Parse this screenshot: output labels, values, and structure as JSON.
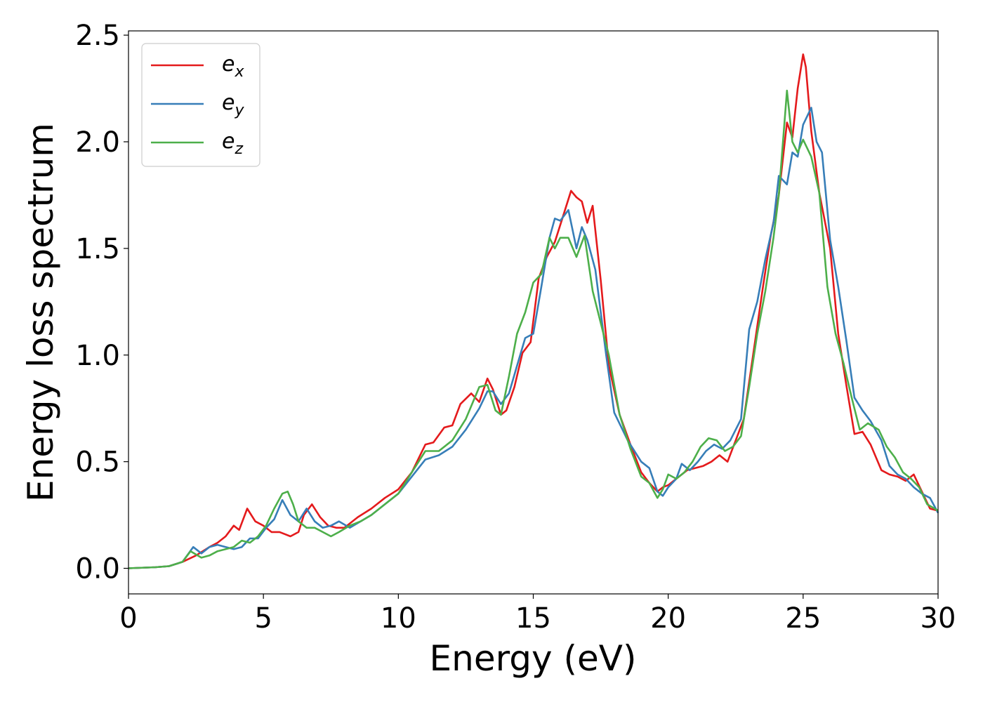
{
  "chart_data": {
    "type": "line",
    "xlabel": "Energy (eV)",
    "ylabel": "Energy loss spectrum",
    "xlim": [
      0,
      30
    ],
    "ylim": [
      -0.12,
      2.52
    ],
    "xticks": [
      0,
      5,
      10,
      15,
      20,
      25,
      30
    ],
    "yticks": [
      "0.0",
      "0.5",
      "1.0",
      "1.5",
      "2.0",
      "2.5"
    ],
    "grid": false,
    "legend_position": "top-left",
    "series": [
      {
        "name": "e",
        "subscript": "x",
        "color": "#e41a1c",
        "x": [
          0,
          1,
          1.5,
          2,
          2.5,
          3,
          3.3,
          3.6,
          3.9,
          4.1,
          4.4,
          4.7,
          5,
          5.3,
          5.6,
          6,
          6.3,
          6.5,
          6.8,
          7.1,
          7.4,
          7.7,
          8,
          8.5,
          9,
          9.5,
          10,
          10.5,
          11,
          11.3,
          11.7,
          12,
          12.3,
          12.7,
          13,
          13.3,
          13.5,
          13.8,
          14,
          14.3,
          14.6,
          14.9,
          15.2,
          15.5,
          15.8,
          16.1,
          16.4,
          16.6,
          16.8,
          17,
          17.2,
          17.5,
          17.8,
          18.2,
          18.6,
          19,
          19.3,
          19.6,
          19.8,
          20,
          20.3,
          20.7,
          21,
          21.3,
          21.6,
          21.9,
          22.2,
          22.5,
          22.8,
          23.1,
          23.5,
          23.8,
          24.1,
          24.4,
          24.6,
          24.8,
          25,
          25.1,
          25.3,
          25.6,
          26,
          26.3,
          26.6,
          26.9,
          27.2,
          27.5,
          27.9,
          28.2,
          28.5,
          28.8,
          29.1,
          29.4,
          29.7,
          30
        ],
        "y": [
          0,
          0.005,
          0.01,
          0.03,
          0.06,
          0.1,
          0.12,
          0.15,
          0.2,
          0.18,
          0.28,
          0.22,
          0.2,
          0.17,
          0.17,
          0.15,
          0.17,
          0.25,
          0.3,
          0.24,
          0.2,
          0.19,
          0.19,
          0.24,
          0.28,
          0.33,
          0.37,
          0.45,
          0.58,
          0.59,
          0.66,
          0.67,
          0.77,
          0.82,
          0.78,
          0.89,
          0.84,
          0.72,
          0.74,
          0.85,
          1.01,
          1.06,
          1.36,
          1.46,
          1.53,
          1.65,
          1.77,
          1.74,
          1.72,
          1.62,
          1.7,
          1.35,
          0.95,
          0.72,
          0.58,
          0.45,
          0.4,
          0.36,
          0.38,
          0.39,
          0.42,
          0.46,
          0.47,
          0.48,
          0.5,
          0.53,
          0.5,
          0.6,
          0.7,
          0.96,
          1.31,
          1.56,
          1.75,
          2.09,
          2.02,
          2.25,
          2.41,
          2.35,
          2.05,
          1.76,
          1.5,
          1.1,
          0.86,
          0.63,
          0.64,
          0.58,
          0.46,
          0.44,
          0.43,
          0.41,
          0.44,
          0.36,
          0.28,
          0.27
        ]
      },
      {
        "name": "e",
        "subscript": "y",
        "color": "#377eb8",
        "x": [
          0,
          1,
          1.5,
          2,
          2.4,
          2.7,
          3,
          3.3,
          3.6,
          3.9,
          4.2,
          4.5,
          4.8,
          5.1,
          5.4,
          5.7,
          6,
          6.3,
          6.6,
          6.9,
          7.2,
          7.5,
          7.8,
          8.2,
          8.6,
          9,
          9.5,
          10,
          10.5,
          11,
          11.5,
          12,
          12.5,
          13,
          13.3,
          13.5,
          13.8,
          14.1,
          14.4,
          14.7,
          15,
          15.3,
          15.6,
          15.8,
          16,
          16.3,
          16.6,
          16.8,
          17,
          17.3,
          17.7,
          18,
          18.5,
          19,
          19.3,
          19.6,
          19.8,
          20,
          20.3,
          20.5,
          20.8,
          21.1,
          21.4,
          21.7,
          22,
          22.3,
          22.7,
          23,
          23.3,
          23.6,
          23.9,
          24.1,
          24.4,
          24.6,
          24.8,
          25,
          25.3,
          25.5,
          25.7,
          26,
          26.3,
          26.6,
          26.9,
          27.2,
          27.5,
          27.9,
          28.2,
          28.5,
          28.8,
          29.1,
          29.4,
          29.7,
          30
        ],
        "y": [
          0,
          0.005,
          0.01,
          0.03,
          0.1,
          0.07,
          0.1,
          0.11,
          0.1,
          0.09,
          0.1,
          0.14,
          0.14,
          0.19,
          0.23,
          0.32,
          0.25,
          0.22,
          0.28,
          0.22,
          0.19,
          0.2,
          0.22,
          0.19,
          0.22,
          0.25,
          0.3,
          0.35,
          0.43,
          0.51,
          0.53,
          0.57,
          0.65,
          0.75,
          0.83,
          0.83,
          0.77,
          0.82,
          0.95,
          1.08,
          1.1,
          1.32,
          1.55,
          1.64,
          1.63,
          1.68,
          1.5,
          1.6,
          1.54,
          1.4,
          1.0,
          0.73,
          0.6,
          0.5,
          0.47,
          0.36,
          0.34,
          0.38,
          0.42,
          0.49,
          0.46,
          0.5,
          0.55,
          0.58,
          0.56,
          0.6,
          0.7,
          1.12,
          1.25,
          1.45,
          1.62,
          1.84,
          1.8,
          1.95,
          1.93,
          2.08,
          2.16,
          2.0,
          1.95,
          1.54,
          1.32,
          1.07,
          0.8,
          0.74,
          0.69,
          0.6,
          0.48,
          0.44,
          0.42,
          0.38,
          0.35,
          0.33,
          0.26
        ]
      },
      {
        "name": "e",
        "subscript": "z",
        "color": "#4daf4a",
        "x": [
          0,
          1,
          1.5,
          2,
          2.3,
          2.7,
          3,
          3.3,
          3.6,
          3.9,
          4.2,
          4.5,
          4.8,
          5.1,
          5.4,
          5.7,
          5.9,
          6.1,
          6.3,
          6.6,
          6.9,
          7.2,
          7.5,
          7.8,
          8.2,
          8.6,
          9,
          9.5,
          10,
          10.5,
          11,
          11.5,
          12,
          12.5,
          13,
          13.3,
          13.6,
          13.8,
          14.1,
          14.4,
          14.7,
          15,
          15.3,
          15.6,
          15.8,
          16,
          16.3,
          16.6,
          16.9,
          17.2,
          17.5,
          17.8,
          18.2,
          18.6,
          19,
          19.3,
          19.6,
          19.8,
          20,
          20.3,
          20.6,
          20.9,
          21.2,
          21.5,
          21.8,
          22.1,
          22.4,
          22.7,
          23,
          23.3,
          23.6,
          23.9,
          24.1,
          24.4,
          24.6,
          24.8,
          25,
          25.3,
          25.6,
          25.9,
          26.2,
          26.5,
          26.8,
          27.1,
          27.4,
          27.8,
          28.1,
          28.4,
          28.7,
          29,
          29.3,
          29.6,
          30
        ],
        "y": [
          0,
          0.005,
          0.01,
          0.03,
          0.08,
          0.05,
          0.06,
          0.08,
          0.09,
          0.1,
          0.13,
          0.12,
          0.15,
          0.2,
          0.28,
          0.35,
          0.36,
          0.3,
          0.22,
          0.19,
          0.19,
          0.17,
          0.15,
          0.17,
          0.2,
          0.22,
          0.25,
          0.3,
          0.35,
          0.45,
          0.55,
          0.55,
          0.6,
          0.7,
          0.85,
          0.86,
          0.74,
          0.72,
          0.9,
          1.1,
          1.2,
          1.34,
          1.38,
          1.55,
          1.5,
          1.55,
          1.55,
          1.46,
          1.56,
          1.3,
          1.15,
          1.0,
          0.72,
          0.56,
          0.43,
          0.4,
          0.33,
          0.37,
          0.44,
          0.42,
          0.45,
          0.5,
          0.57,
          0.61,
          0.6,
          0.55,
          0.57,
          0.62,
          0.85,
          1.1,
          1.3,
          1.55,
          1.75,
          2.24,
          2.0,
          1.95,
          2.01,
          1.93,
          1.76,
          1.32,
          1.1,
          0.96,
          0.8,
          0.65,
          0.68,
          0.65,
          0.57,
          0.52,
          0.45,
          0.42,
          0.38,
          0.3,
          0.27
        ]
      }
    ]
  }
}
